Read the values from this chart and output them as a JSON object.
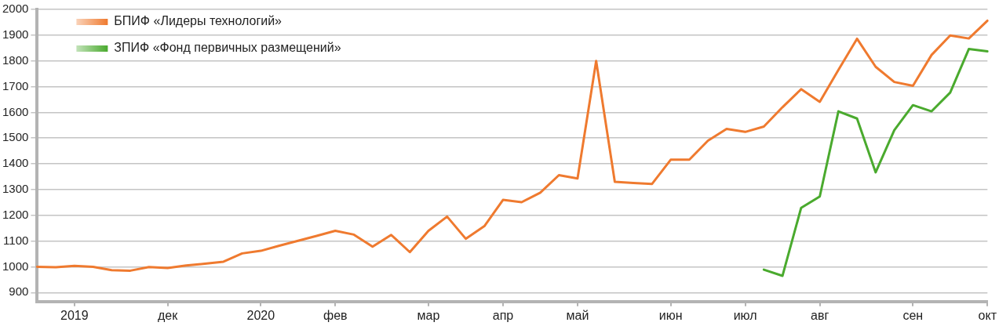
{
  "chart_data": {
    "type": "line",
    "categories": [
      null,
      null,
      "2019",
      null,
      null,
      null,
      null,
      "дек",
      null,
      null,
      null,
      null,
      "2020",
      null,
      null,
      null,
      "фев",
      null,
      null,
      null,
      null,
      "мар",
      null,
      null,
      null,
      "апр",
      null,
      null,
      null,
      "май",
      null,
      null,
      null,
      null,
      "июн",
      null,
      null,
      null,
      "июл",
      null,
      null,
      null,
      "авг",
      null,
      null,
      null,
      null,
      "сен",
      null,
      null,
      null,
      "окт"
    ],
    "series": [
      {
        "name": "БПИФ «Лидеры технологий»",
        "color": "#ef7a2f",
        "values": [
          1000,
          998,
          1004,
          1000,
          987,
          985,
          999,
          995,
          1005,
          1012,
          1020,
          1052,
          1062,
          1082,
          1101,
          1120,
          1140,
          1125,
          1078,
          1124,
          1057,
          1140,
          1195,
          1109,
          1158,
          1260,
          1251,
          1288,
          1356,
          1343,
          1800,
          1330,
          1326,
          1322,
          1416,
          1416,
          1490,
          1536,
          1524,
          1545,
          1620,
          1690,
          1641,
          1765,
          1886,
          1777,
          1718,
          1703,
          1823,
          1899,
          1887,
          1956
        ]
      },
      {
        "name": "ЗПИФ «Фонд первичных размещений»",
        "color": "#4aaa2e",
        "values": [
          null,
          null,
          null,
          null,
          null,
          null,
          null,
          null,
          null,
          null,
          null,
          null,
          null,
          null,
          null,
          null,
          null,
          null,
          null,
          null,
          null,
          null,
          null,
          null,
          null,
          null,
          null,
          null,
          null,
          null,
          null,
          null,
          null,
          null,
          null,
          null,
          null,
          null,
          null,
          989,
          965,
          1229,
          1273,
          1604,
          1576,
          1367,
          1531,
          1628,
          1604,
          1677,
          1846,
          1837
        ]
      }
    ],
    "ylim": [
      865,
      2000
    ],
    "yticks": [
      900,
      1000,
      1100,
      1200,
      1300,
      1400,
      1500,
      1600,
      1700,
      1800,
      1900,
      2000
    ],
    "grid": "y",
    "legend": "top left",
    "marker": "none",
    "line_style": "solid"
  }
}
